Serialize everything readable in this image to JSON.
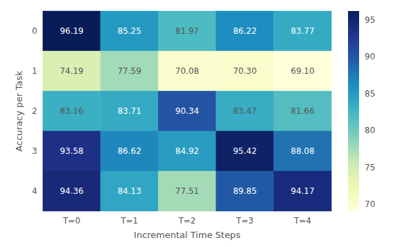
{
  "chart_data": {
    "type": "heatmap",
    "xlabel": "Incremental Time Steps",
    "ylabel": "Accuracy per Task",
    "x": [
      "T=0",
      "T=1",
      "T=2",
      "T=3",
      "T=4"
    ],
    "y": [
      "0",
      "1",
      "2",
      "3",
      "4"
    ],
    "values": [
      [
        96.19,
        85.25,
        81.97,
        86.22,
        83.77
      ],
      [
        74.19,
        77.59,
        70.08,
        70.3,
        69.1
      ],
      [
        83.16,
        83.71,
        90.34,
        83.47,
        81.66
      ],
      [
        93.58,
        86.62,
        84.92,
        95.42,
        88.08
      ],
      [
        94.36,
        84.13,
        77.51,
        89.85,
        94.17
      ]
    ],
    "value_labels": [
      [
        "96.19",
        "85.25",
        "81.97",
        "86.22",
        "83.77"
      ],
      [
        "74.19",
        "77.59",
        "70.08",
        "70.30",
        "69.10"
      ],
      [
        "83.16",
        "83.71",
        "90.34",
        "83.47",
        "81.66"
      ],
      [
        "93.58",
        "86.62",
        "84.92",
        "95.42",
        "88.08"
      ],
      [
        "94.36",
        "84.13",
        "77.51",
        "89.85",
        "94.17"
      ]
    ],
    "data_labels": true,
    "grid": false,
    "colorbar": {
      "range": [
        69.1,
        96.19
      ],
      "ticks": [
        70,
        75,
        80,
        85,
        90,
        95
      ],
      "colors": [
        "#ffffd9",
        "#edf8b1",
        "#c7e9b4",
        "#7fcdbb",
        "#41b6c4",
        "#1d91c0",
        "#225ea8",
        "#253494",
        "#081d58"
      ]
    }
  }
}
